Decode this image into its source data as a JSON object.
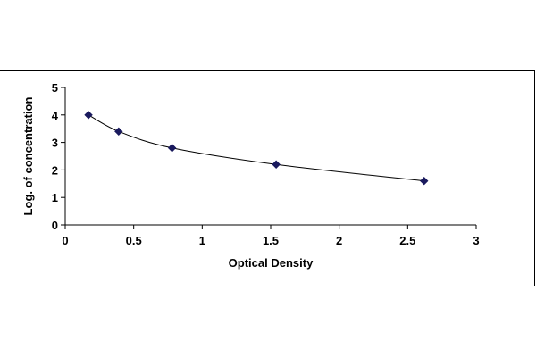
{
  "chart_data": {
    "type": "scatter",
    "title": "",
    "xlabel": "Optical Density",
    "ylabel": "Log. of concentration",
    "xlim": [
      0,
      3
    ],
    "ylim": [
      0,
      5
    ],
    "x_ticks": [
      "0",
      "0.5",
      "1",
      "1.5",
      "2",
      "2.5",
      "3"
    ],
    "y_ticks": [
      "0",
      "1",
      "2",
      "3",
      "4",
      "5"
    ],
    "grid": false,
    "legend": "none",
    "series": [
      {
        "x": [
          0.17,
          0.39,
          0.78,
          1.54,
          2.62
        ],
        "y": [
          4.0,
          3.4,
          2.8,
          2.2,
          1.6
        ],
        "fit": "smooth-curve",
        "marker": "diamond",
        "color": "#1a1a5e"
      }
    ]
  }
}
